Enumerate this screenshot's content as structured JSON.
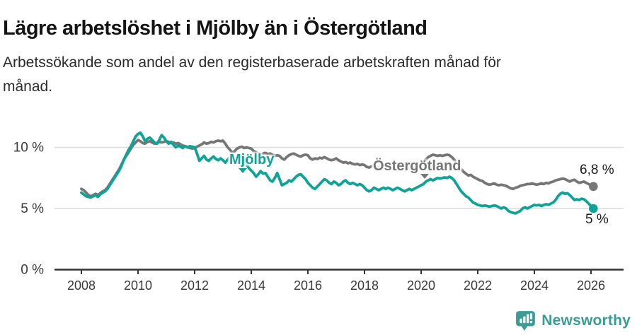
{
  "header": {
    "title": "Lägre arbetslöshet i Mjölby än i Östergötland",
    "subtitle_line1": "Arbetssökande som andel av den registerbaserade arbetskraften månad för",
    "subtitle_line2": "månad."
  },
  "chart_data": {
    "type": "line",
    "title": "Lägre arbetslöshet i Mjölby än i Östergötland",
    "xlabel": "",
    "ylabel": "Arbetssökande som andel av den registerbaserade arbetskraften",
    "x_unit": "month",
    "x_start": "2008-01",
    "x_end": "2026-02",
    "x_ticks": [
      2008,
      2010,
      2012,
      2014,
      2016,
      2018,
      2020,
      2022,
      2024,
      2026
    ],
    "y_ticks": [
      {
        "value": 0,
        "label": "0 %"
      },
      {
        "value": 5,
        "label": "5 %"
      },
      {
        "value": 10,
        "label": "10 %"
      }
    ],
    "ylim": [
      0,
      11.8
    ],
    "grid": "horizontal",
    "legend_position": "inline-labels",
    "series": [
      {
        "name": "Östergötland",
        "color": "#767676",
        "end_label": "6,8 %",
        "end_value": 6.8,
        "values": [
          6.6,
          6.5,
          6.3,
          6.1,
          6.0,
          6.1,
          6.2,
          6.1,
          6.25,
          6.4,
          6.5,
          6.7,
          7.0,
          7.3,
          7.6,
          7.9,
          8.2,
          8.6,
          9.0,
          9.3,
          9.6,
          9.9,
          10.2,
          10.4,
          10.6,
          10.5,
          10.35,
          10.3,
          10.45,
          10.5,
          10.4,
          10.3,
          10.35,
          10.45,
          10.4,
          10.45,
          10.5,
          10.45,
          10.35,
          10.4,
          10.3,
          10.35,
          10.25,
          10.15,
          10.1,
          10.0,
          9.95,
          9.9,
          9.95,
          10.05,
          10.15,
          10.25,
          10.4,
          10.3,
          10.35,
          10.45,
          10.4,
          10.5,
          10.55,
          10.5,
          10.55,
          10.3,
          10.0,
          9.8,
          9.55,
          9.7,
          9.9,
          10.0,
          10.05,
          9.95,
          10.0,
          9.95,
          9.9,
          9.7,
          9.6,
          9.5,
          9.4,
          9.5,
          9.55,
          9.45,
          9.5,
          9.4,
          9.3,
          9.35,
          9.3,
          9.1,
          9.0,
          9.2,
          9.35,
          9.45,
          9.5,
          9.4,
          9.3,
          9.25,
          9.35,
          9.4,
          9.35,
          9.1,
          9.0,
          9.1,
          9.05,
          9.15,
          9.1,
          9.2,
          9.1,
          9.0,
          8.95,
          9.0,
          9.1,
          8.95,
          8.85,
          8.75,
          8.8,
          8.7,
          8.75,
          8.65,
          8.6,
          8.65,
          8.55,
          8.6,
          8.55,
          8.4,
          8.35,
          8.45,
          8.55,
          8.45,
          8.35,
          8.45,
          8.4,
          8.3,
          8.35,
          8.3,
          8.25,
          8.2,
          8.15,
          8.25,
          8.2,
          8.3,
          8.25,
          8.35,
          8.4,
          8.45,
          8.5,
          8.55,
          8.7,
          8.8,
          9.0,
          9.2,
          9.3,
          9.4,
          9.35,
          9.3,
          9.35,
          9.3,
          9.35,
          9.4,
          9.35,
          9.2,
          9.0,
          8.8,
          8.5,
          8.2,
          8.0,
          7.85,
          7.7,
          7.75,
          7.6,
          7.5,
          7.4,
          7.3,
          7.25,
          7.1,
          7.0,
          6.95,
          7.0,
          7.05,
          6.95,
          6.9,
          6.95,
          6.9,
          6.85,
          6.75,
          6.65,
          6.6,
          6.7,
          6.75,
          6.85,
          6.9,
          6.95,
          7.0,
          7.0,
          7.05,
          7.0,
          6.95,
          7.0,
          7.05,
          7.0,
          7.1,
          7.05,
          7.15,
          7.2,
          7.3,
          7.35,
          7.4,
          7.45,
          7.4,
          7.3,
          7.2,
          7.3,
          7.35,
          7.2,
          7.1,
          7.15,
          7.2,
          7.1,
          7.0,
          6.9,
          6.8
        ]
      },
      {
        "name": "Mjölby",
        "color": "#0fa396",
        "end_label": "5 %",
        "end_value": 5.0,
        "values": [
          6.3,
          6.15,
          6.0,
          5.95,
          5.9,
          6.0,
          6.1,
          5.95,
          6.15,
          6.3,
          6.4,
          6.6,
          6.9,
          7.2,
          7.5,
          7.8,
          8.1,
          8.5,
          9.0,
          9.4,
          9.8,
          10.1,
          10.5,
          10.9,
          11.1,
          11.2,
          10.9,
          10.5,
          10.7,
          10.8,
          10.6,
          10.4,
          10.3,
          10.6,
          11.0,
          10.8,
          10.5,
          10.3,
          10.45,
          10.2,
          10.0,
          10.15,
          10.05,
          9.95,
          10.1,
          10.0,
          10.1,
          10.05,
          10.0,
          9.5,
          8.9,
          9.1,
          9.3,
          9.0,
          8.9,
          9.1,
          9.25,
          9.05,
          8.95,
          9.1,
          8.95,
          8.75,
          9.0,
          9.2,
          9.3,
          9.15,
          9.0,
          9.2,
          9.1,
          8.9,
          8.6,
          8.3,
          8.1,
          7.9,
          7.6,
          7.8,
          8.05,
          7.85,
          7.9,
          7.6,
          7.3,
          7.2,
          7.5,
          7.9,
          7.4,
          6.9,
          7.0,
          7.1,
          7.3,
          7.2,
          7.4,
          7.6,
          7.75,
          7.8,
          7.6,
          7.4,
          7.1,
          6.9,
          6.7,
          6.6,
          6.8,
          7.0,
          7.2,
          7.4,
          7.3,
          7.1,
          7.0,
          7.2,
          7.1,
          6.9,
          7.0,
          7.2,
          7.3,
          7.1,
          7.0,
          7.1,
          7.0,
          6.9,
          7.0,
          6.9,
          6.7,
          6.5,
          6.4,
          6.5,
          6.7,
          6.6,
          6.5,
          6.6,
          6.7,
          6.6,
          6.7,
          6.6,
          6.5,
          6.6,
          6.7,
          6.6,
          6.5,
          6.4,
          6.5,
          6.6,
          6.5,
          6.6,
          6.7,
          6.8,
          6.9,
          7.0,
          7.2,
          7.3,
          7.4,
          7.3,
          7.4,
          7.5,
          7.45,
          7.5,
          7.55,
          7.5,
          7.6,
          7.5,
          7.3,
          7.0,
          6.7,
          6.4,
          6.2,
          6.0,
          5.9,
          5.7,
          5.5,
          5.4,
          5.3,
          5.25,
          5.2,
          5.25,
          5.2,
          5.15,
          5.2,
          5.25,
          5.2,
          5.1,
          5.0,
          5.1,
          5.0,
          4.8,
          4.7,
          4.65,
          4.6,
          4.7,
          4.8,
          5.0,
          5.1,
          5.0,
          5.1,
          5.2,
          5.3,
          5.25,
          5.3,
          5.2,
          5.3,
          5.35,
          5.3,
          5.4,
          5.5,
          5.7,
          6.0,
          6.2,
          6.3,
          6.2,
          6.25,
          6.1,
          5.9,
          5.7,
          5.75,
          5.7,
          5.8,
          5.75,
          5.6,
          5.4,
          5.2,
          5.0
        ]
      }
    ]
  },
  "colors": {
    "axis": "#333333",
    "grid": "#dcdcdc",
    "tick_text": "#3a3a3a",
    "title_text": "#141414",
    "annotation_text": "#1c1c1c",
    "background": "#ffffff"
  },
  "footer": {
    "brand": "Newsworthy",
    "brand_color": "#3b9c95"
  }
}
